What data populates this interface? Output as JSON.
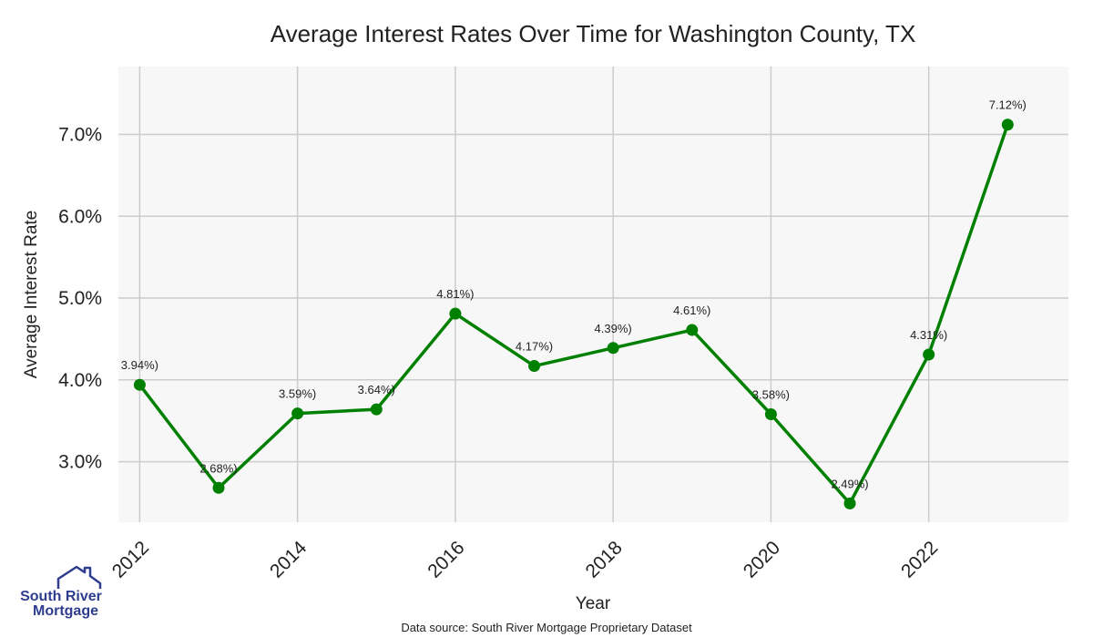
{
  "chart_data": {
    "type": "line",
    "title": "Average Interest Rates Over Time for Washington County, TX",
    "xlabel": "Year",
    "ylabel": "Average Interest Rate",
    "x": [
      2012,
      2013,
      2014,
      2015,
      2016,
      2017,
      2018,
      2019,
      2020,
      2021,
      2022,
      2023
    ],
    "values": [
      3.94,
      2.68,
      3.59,
      3.64,
      4.81,
      4.17,
      4.39,
      4.61,
      3.58,
      2.49,
      4.31,
      7.12
    ],
    "data_labels": [
      "3.94%)",
      "2.68%)",
      "3.59%)",
      "3.64%)",
      "4.81%)",
      "4.17%)",
      "4.39%)",
      "4.61%)",
      "3.58%)",
      "2.49%)",
      "4.31%)",
      "7.12%)"
    ],
    "x_ticks": [
      2012,
      2014,
      2016,
      2018,
      2020,
      2022
    ],
    "y_ticks": [
      3.0,
      4.0,
      5.0,
      6.0,
      7.0
    ],
    "y_tick_labels": [
      "3.0%",
      "4.0%",
      "5.0%",
      "6.0%",
      "7.0%"
    ],
    "xlim": [
      2011.73,
      2023.77
    ],
    "ylim": [
      2.26,
      7.83
    ],
    "grid": true,
    "line_color": "#008000",
    "background_color": "#f7f7f7",
    "grid_color": "#cccccc"
  },
  "footer": {
    "source": "Data source: South River Mortgage Proprietary Dataset"
  },
  "logo": {
    "line1": "South River",
    "line2": "Mortgage",
    "icon": "house-icon",
    "color": "#2f3d8f"
  }
}
